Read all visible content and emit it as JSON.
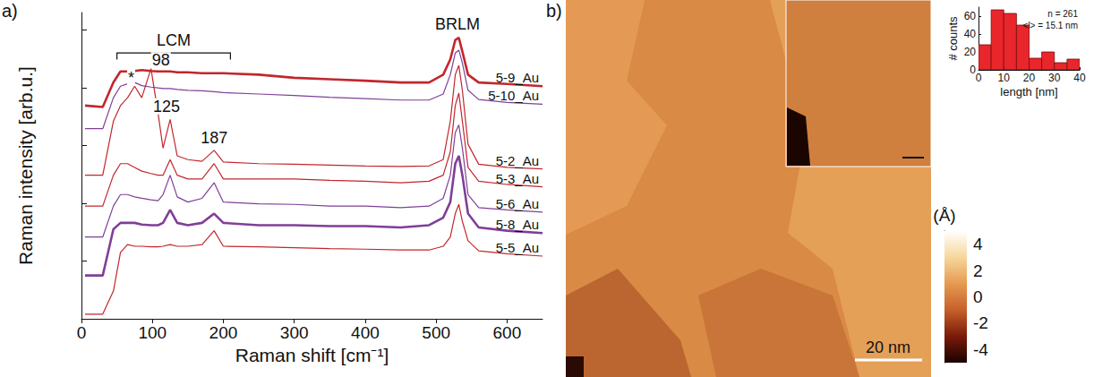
{
  "chart_data": [
    {
      "type": "line",
      "panel": "a)",
      "xlabel": "Raman shift [cm⁻¹]",
      "ylabel": "Raman intensity [arb.u.]",
      "xlim": [
        0,
        650
      ],
      "xticks": [
        0,
        100,
        200,
        300,
        400,
        500,
        600
      ],
      "ylim": [
        0,
        10.6
      ],
      "yticks": [
        0,
        2,
        4,
        6,
        8,
        10
      ],
      "tick_labels": "x",
      "x": [
        5,
        30,
        45,
        55,
        65,
        75,
        85,
        98,
        108,
        115,
        125,
        135,
        150,
        170,
        187,
        200,
        250,
        300,
        350,
        400,
        450,
        490,
        510,
        520,
        527,
        532,
        537,
        545,
        560,
        600,
        650
      ],
      "series": [
        {
          "name": "5-9_Au",
          "color": "#c1272d",
          "line_style": "thick",
          "values": [
            7.38,
            7.33,
            8.18,
            8.56,
            8.56,
            8.58,
            8.61,
            8.58,
            8.56,
            8.56,
            8.56,
            8.53,
            8.53,
            8.5,
            8.5,
            8.5,
            8.45,
            8.34,
            8.29,
            8.24,
            8.18,
            8.18,
            8.45,
            8.98,
            9.65,
            9.73,
            9.25,
            8.45,
            8.18,
            8.13,
            8.05
          ]
        },
        {
          "name": "5-10_Au",
          "color": "#7f3f98",
          "line_style": "thin",
          "values": [
            6.58,
            6.58,
            7.65,
            8.05,
            8.13,
            8.18,
            8.07,
            8.02,
            7.99,
            7.97,
            7.97,
            7.94,
            7.91,
            7.89,
            7.86,
            7.83,
            7.78,
            7.73,
            7.67,
            7.62,
            7.57,
            7.57,
            7.78,
            8.45,
            9.2,
            9.3,
            8.85,
            7.91,
            7.59,
            7.49,
            7.43
          ]
        },
        {
          "name": "5-2_Au",
          "color": "#c1272d",
          "line_style": "thin",
          "values": [
            4.97,
            4.97,
            6.84,
            7.38,
            7.65,
            8.05,
            7.65,
            8.66,
            7.11,
            5.91,
            6.9,
            5.64,
            5.51,
            5.45,
            5.83,
            5.43,
            5.37,
            5.35,
            5.32,
            5.29,
            5.27,
            5.29,
            5.51,
            6.84,
            8.45,
            8.77,
            7.91,
            6.04,
            5.35,
            5.24,
            5.19
          ]
        },
        {
          "name": "5-3_Au",
          "color": "#c1272d",
          "line_style": "thin",
          "values": [
            3.9,
            3.9,
            4.97,
            5.37,
            5.37,
            5.24,
            5.11,
            5.03,
            4.97,
            4.97,
            5.51,
            4.97,
            4.84,
            4.84,
            5.37,
            4.84,
            4.84,
            4.84,
            4.79,
            4.76,
            4.71,
            4.76,
            4.97,
            5.78,
            7.38,
            7.81,
            6.84,
            5.24,
            4.76,
            4.65,
            4.57
          ]
        },
        {
          "name": "5-6_Au",
          "color": "#7f3f98",
          "line_style": "thin",
          "values": [
            2.83,
            2.83,
            3.9,
            4.3,
            4.3,
            4.22,
            4.17,
            4.12,
            4.09,
            4.3,
            4.97,
            4.22,
            4.04,
            4.17,
            4.71,
            4.04,
            3.98,
            3.96,
            3.9,
            3.9,
            3.85,
            3.9,
            4.17,
            4.97,
            6.44,
            6.71,
            5.91,
            4.3,
            3.85,
            3.77,
            3.69
          ]
        },
        {
          "name": "5-8_Au",
          "color": "#7f3f98",
          "line_style": "thick",
          "values": [
            1.5,
            1.5,
            3.1,
            3.32,
            3.32,
            3.32,
            3.26,
            3.24,
            3.24,
            3.32,
            3.77,
            3.32,
            3.24,
            3.32,
            3.64,
            3.32,
            3.24,
            3.24,
            3.21,
            3.21,
            3.16,
            3.24,
            3.5,
            4.04,
            5.37,
            5.64,
            4.97,
            3.64,
            3.16,
            3.05,
            2.97
          ]
        },
        {
          "name": "5-5_Au",
          "color": "#c1272d",
          "line_style": "thin",
          "values": [
            0.16,
            0.16,
            0.96,
            2.3,
            2.57,
            2.51,
            2.51,
            2.49,
            2.49,
            2.51,
            2.57,
            2.51,
            2.51,
            2.57,
            3.05,
            2.51,
            2.49,
            2.46,
            2.43,
            2.41,
            2.38,
            2.38,
            2.51,
            2.83,
            3.64,
            3.96,
            3.37,
            2.7,
            2.35,
            2.25,
            2.17
          ]
        }
      ],
      "annotations": [
        {
          "text": "LCM",
          "x": 130,
          "y": 9.65,
          "span": [
            50,
            210
          ]
        },
        {
          "text": "BRLM",
          "x": 530,
          "y": 10.2
        },
        {
          "text": "*",
          "x": 70,
          "y": 8.35
        },
        {
          "text": "98",
          "x": 112,
          "y": 8.95
        },
        {
          "text": "125",
          "x": 120,
          "y": 7.35
        },
        {
          "text": "187",
          "x": 187,
          "y": 6.25
        }
      ]
    },
    {
      "type": "image",
      "panel": "b)",
      "scale_bar": "20 nm"
    },
    {
      "type": "colorbar",
      "title": "(Å)",
      "ylim": [
        -5,
        5
      ],
      "yticks": [
        -4,
        -2,
        0,
        2,
        4
      ],
      "colors": [
        "#1a0200",
        "#7a1a08",
        "#c5602a",
        "#e69a50",
        "#f6d79a",
        "#ffffff"
      ]
    },
    {
      "type": "histogram",
      "xlabel": "length [nm]",
      "ylabel": "# counts",
      "bins": [
        0,
        5,
        10,
        15,
        20,
        25,
        30,
        35,
        40
      ],
      "counts": [
        28,
        67,
        63,
        50,
        13,
        20,
        8,
        12
      ],
      "color": "#e8262b",
      "xlim": [
        0,
        40
      ],
      "xticks": [
        0,
        10,
        20,
        30,
        40
      ],
      "ylim": [
        0,
        70
      ],
      "yticks": [
        0,
        20,
        40,
        60
      ],
      "annotations": [
        "n = 261",
        "<l> = 15.1 nm"
      ]
    }
  ]
}
